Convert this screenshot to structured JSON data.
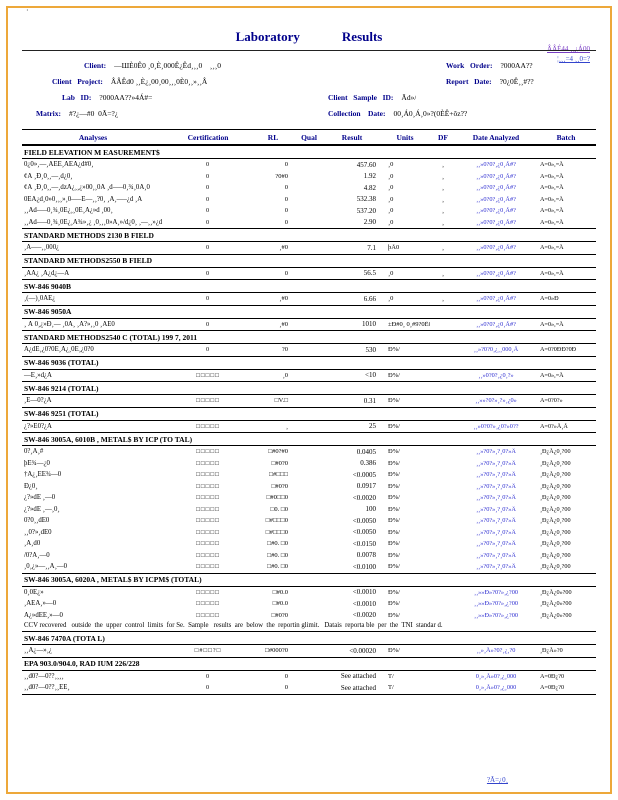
{
  "page": {
    "title_left": "Laboratory",
    "title_right": "Results",
    "corner_mark": "·",
    "footer_right": "?Ã=¿0¸"
  },
  "links": {
    "line1": "ÂÂÉ44   ¸¸¿Á00",
    "line2": "¦¸¸¸=4    ¸¸0=?"
  },
  "header": {
    "client_label": "Client:",
    "client_value": "—ШÈ0Ê0 ¸0¸È¸000Ê¿Êd¸¸¸0    ¸¸¸0",
    "work_order_label": "Work   Order:",
    "work_order_value": "?000AA??",
    "project_label": "Client   Project:",
    "project_value": "ÂÂÊd0 ¸¸È¿¸00¸00¸¸¸0È0¸¸»¸¸Â",
    "report_date_label": "Report   Date:",
    "report_date_value": "?0¿0Ê¸¸#??",
    "lab_id_label": "Lab   ID:",
    "lab_id_value": "?000AA??»4Á#=",
    "sample_id_label": "Client   Sample   ID:",
    "sample_id_value": "Ãd»/",
    "matrix_label": "Matrix:",
    "matrix_value": "#?¿—#0  0Ã=?¿",
    "collection_label": "Collection    Date:",
    "collection_value": "00¸Á0¸Á¸0»?(0ÈÊ+ôz??"
  },
  "table": {
    "columns": [
      "Analyses",
      "Certification",
      "RL",
      "Qual",
      "Result",
      "Units",
      "DF",
      "Date  Analyzed",
      "Batch"
    ],
    "sections": [
      {
        "title": "FIELD   ELEVATION     M EASUREMENT$",
        "rows": [
          [
            "0¿0»¸—¸ÂÈÊ¸ÂÊÂ¿d#0¸",
            "0",
            "0",
            "",
            "457.60",
            "¸0",
            "¸",
            "¸¸»0?0?¸¿0¸Å#?",
            "A=0»,=Å"
          ],
          [
            "¢Â  ¸Ð¸0¸¸—¸d¿0¸",
            "0",
            "?0#0",
            "",
            "1.92",
            "¸0",
            "¸",
            "¸¸»0?0?¸¿0¸Å#?",
            "A=0»,=Å"
          ],
          [
            "¢Â  ¸Ð¸0¸¸—¸dzÂ¿¸¸¿»00¸¸0Å   ¸d—–0¸¾¸0Ä¸0",
            "0",
            "0",
            "",
            "4.82",
            "¸0",
            "¸",
            "¸¸»0?0?¸¿0¸Å#?",
            "A=0»,=Å"
          ],
          [
            "0ÊÂ¿d¸0»0¸¸¸»¸0—–Ê—¸¸?0¸  ¸Â¸—–¿d  ¸Â",
            "0",
            "0",
            "",
            "532.38",
            "¸0",
            "¸",
            "¸¸»0?0?¸¿0¸Å#?",
            "A=0»,=Å"
          ],
          [
            "¸¸Âd—–0¸¾¸0Ê¿¸¸0Ê¸Â¿»d   ¸00¸",
            "0",
            "0",
            "",
            "537.20",
            "¸0",
            "¸",
            "¸¸»0?0?¸¿0¸Å#?",
            "A=0»,=Å"
          ],
          [
            "¸¸Âd—–0¸¾¸0Ê¿¸Â¾»¸¿  ¸0¸¸¸0»Â¸»/d¿0¸  ¸—¸¸»¿d  ¸Â",
            "0",
            "0",
            "",
            "2.90",
            "¸0",
            "¸",
            "¸¸»0?0?¸¿0¸Å#?",
            "A=0»,=Å"
          ]
        ]
      },
      {
        "title": "STANDARD      METHODS    2130   B FIELD",
        "rows": [
          [
            "¸Â—–¸¸000¿",
            "0",
            "¸#0",
            "",
            "7.1",
            "þÃ0",
            "¸",
            "¸¸»0?0?¸¿0¸Å#?",
            "A=0»,=Å"
          ]
        ]
      },
      {
        "title": "STANDARD      METHODS2550      B FIELD",
        "rows": [
          [
            "¸ÂÂ¿  ¸Â¿d¿—Â",
            "0",
            "0",
            "",
            "56.5",
            "¸0",
            "¸",
            "¸¸»0?0?¸¿0¸Å#?",
            "A=0»,=Å"
          ]
        ]
      },
      {
        "title": "SW-846    9040B",
        "rows": [
          [
            "¸(—)¸0ÂÈ¿",
            "0",
            "¸#0",
            "",
            "6.66",
            "¸0",
            "¸",
            "¸¸»0?0?¸¿0¸Å#?",
            "A=0»Ð"
          ]
        ]
      },
      {
        "title": "SW-846    9050A",
        "rows": [
          [
            "¸ Ä  0¸¿»Ð¸—  ¸0Ä¸  ¸Â?»¸¸0   ¸ÂÈ0",
            "0",
            "¸#0",
            "",
            "1010",
            "±Ð#0¸ 0¸#9?0È0?",
            "",
            "¸¸»0?0?¸¿0¸Å#?",
            "A=0»,=Å"
          ]
        ]
      },
      {
        "title": "STANDARD      METHODS2540      C (TOTAL)    199 7,   2011",
        "rows": [
          [
            "Â¿dÊ¸¿0?0È¸Â¿¸0È¸¿0?0",
            "0",
            "?0",
            "",
            "530",
            "Ð%/",
            "",
            "¸¸»?0?0¸¿¸¸000¸Å",
            "A=0?0ÐÐ?0Ð"
          ]
        ]
      },
      {
        "title": "SW-846    9036   (TOTAL)",
        "rows": [
          [
            "—Ê¸»d¿Â",
            "□□□□□",
            "¸0",
            "",
            "<10",
            "Ð%/",
            "",
            "¸¸»0?0?¸¿0¸?»",
            "A=0»,=Å"
          ]
        ]
      },
      {
        "title": "SW-846    9214   (TOTAL)",
        "rows": [
          [
            "¸È—0?¿Â",
            "□□□□□",
            "□V.□",
            "",
            "0.31",
            "Ð%/",
            "",
            "¸¸»»?0?»¸?»¸¿0»",
            "A=0?0?»"
          ]
        ]
      },
      {
        "title": "SW-846    9251   (TOTAL)",
        "rows": [
          [
            "¿?»Ê0?¿Â",
            "□□□□□",
            "¸",
            "",
            "25",
            "Ð%/",
            "",
            "¸¸»0?0?»¸¿0?»0??",
            "A=0?»Å¸Å"
          ]
        ]
      },
      {
        "title": "SW-846    3005A,    6010B , METAL$    BY ICP   (TO TAL)",
        "rows": [
          [
            "0?¸Â¸#",
            "□□□□□",
            "□#0?#0",
            "",
            "0.0405",
            "Ð%/",
            "",
            "¸¸»?0?»¸?¸0?»Â",
            "¸Ð¿Å¿0¸?00"
          ],
          [
            "þÊ¾—¿0",
            "□□□□□",
            "□#0?0",
            "",
            "0.386",
            "Ð%/",
            "",
            "¸¸»?0?»¸?¸0?»Â",
            "¸Ð¿Å¿0¸?00"
          ],
          [
            "†Â¿¸ÊÊ¾—0",
            "□□□□□",
            "□#□□□",
            "",
            "<0.0005",
            "Ð%/",
            "",
            "¸¸»?0?»¸?¸0?»Â",
            "¸Ð¿Å¿0¸?00"
          ],
          [
            "Ð¿0¸",
            "□□□□□",
            "□#0?0",
            "",
            "0.0917",
            "Ð%/",
            "",
            "¸¸»?0?»¸?¸0?»Â",
            "¸Ð¿Å¿0¸?00"
          ],
          [
            "¿?»dÊ  ¸—0",
            "□□□□□",
            "□#0□□0",
            "",
            "<0.0020",
            "Ð%/",
            "",
            "¸¸»?0?»¸?¸0?»Â",
            "¸Ð¿Å¿0¸?00"
          ],
          [
            "¿?»dÊ  ¸—¸0¸",
            "□□□□□",
            "□0. □0",
            "",
            "100",
            "Ð%/",
            "",
            "¸¸»?0?»¸?¸0?»Â",
            "¸Ð¿Å¿0¸?00"
          ],
          [
            "0?0¸¸dÊ0",
            "□□□□□",
            "□#□□□0",
            "",
            "<0.0050",
            "Ð%/",
            "",
            "¸¸»?0?»¸?¸0?»Â",
            "¸Ð¿Å¿0¸?00"
          ],
          [
            "¸¸0?»¸dÊ0",
            "□□□□□",
            "□#□□□0",
            "",
            "<0.0050",
            "Ð%/",
            "",
            "¸¸»?0?»¸?¸0?»Â",
            "¸Ð¿Å¿0¸?00"
          ],
          [
            "¸Â¸d0",
            "□□□□□",
            "□#0. □0",
            "",
            "<0.0150",
            "Ð%/",
            "",
            "¸¸»?0?»¸?¸0?»Â",
            "¸Ð¿Å¿0¸?00"
          ],
          [
            "/0?Â¸—0",
            "□□□□□",
            "□#0. □0",
            "",
            "0.0078",
            "Ð%/",
            "",
            "¸¸»?0?»¸?¸0?»Â",
            "¸Ð¿Å¿0¸?00"
          ],
          [
            "¸0¸¿»—¸¸Â¸—0",
            "□□□□□",
            "□#0. □0",
            "",
            "<0.0100",
            "Ð%/",
            "",
            "¸¸»?0?»¸?¸0?»Â",
            "¸Ð¿Å¿0¸?00"
          ]
        ]
      },
      {
        "title": "SW-846    3005A,   6020A , METAL$    BY ICPM$   (TOTAL)",
        "rows": [
          [
            "0¸0Ê¿»",
            "□□□□□",
            "□#0.0",
            "",
            "<0.0010",
            "Ð%/",
            "",
            "¸¸»»Ð»?0?»¸¿?00",
            "¸Ð¿Å¿0»?00"
          ],
          [
            "¸ÂÊÂ¸»—0",
            "□□□□□",
            "□#0.0",
            "",
            "<0.0010",
            "Ð%/",
            "",
            "¸¸»»Ð»?0?»¸¿?00",
            "¸Ð¿Å¿0»?00"
          ],
          [
            "Â¿»dÊÊ¸»—0",
            "□□□□□",
            "□#0?0",
            "",
            "<0.0020",
            "Ð%/",
            "",
            "¸¸»»Ð»?0?»¸¿?00",
            "¸Ð¿Å¿0»?00"
          ]
        ],
        "note": "CCV recovered   outside  the  upper  control  limits  for Se.  Sample   results  are  below  the  reportin glimit.   Datais  reporta ble  per  the  TNI  standar d."
      },
      {
        "title": "SW-846    7470A   (TOTA L)",
        "rows": [
          [
            "¸¸Â¿—»¸¿",
            "□#□□?□",
            "□#000?0",
            "",
            "<0.00020",
            "Ð%/",
            "",
            "¸¸»¸Å»?0?¸¿¸?0",
            "¸Ð¿Å»?0"
          ]
        ]
      },
      {
        "title": "EPA   903.0/904.0,     RAD IUM   226/228",
        "rows": [
          [
            "¸¸d0?—0??¸¸¸¸",
            "0",
            "0",
            "",
            "See   attached",
            "Ƭ/",
            "",
            "0¸»¸Å»0?¸¿¸000",
            "A=0Ð¿?0"
          ],
          [
            "¸¸d0?—0??¸¸ÊÊ¸",
            "0",
            "0",
            "",
            "See   attached",
            "Ƭ/",
            "",
            "0¸»¸Å»0?¸¿¸000",
            "A=0Ð¿?0"
          ]
        ]
      }
    ]
  },
  "colors": {
    "accent_navy": "#00008B",
    "date_blue": "#2B2BD0",
    "border_orange": "#EDA83A"
  }
}
